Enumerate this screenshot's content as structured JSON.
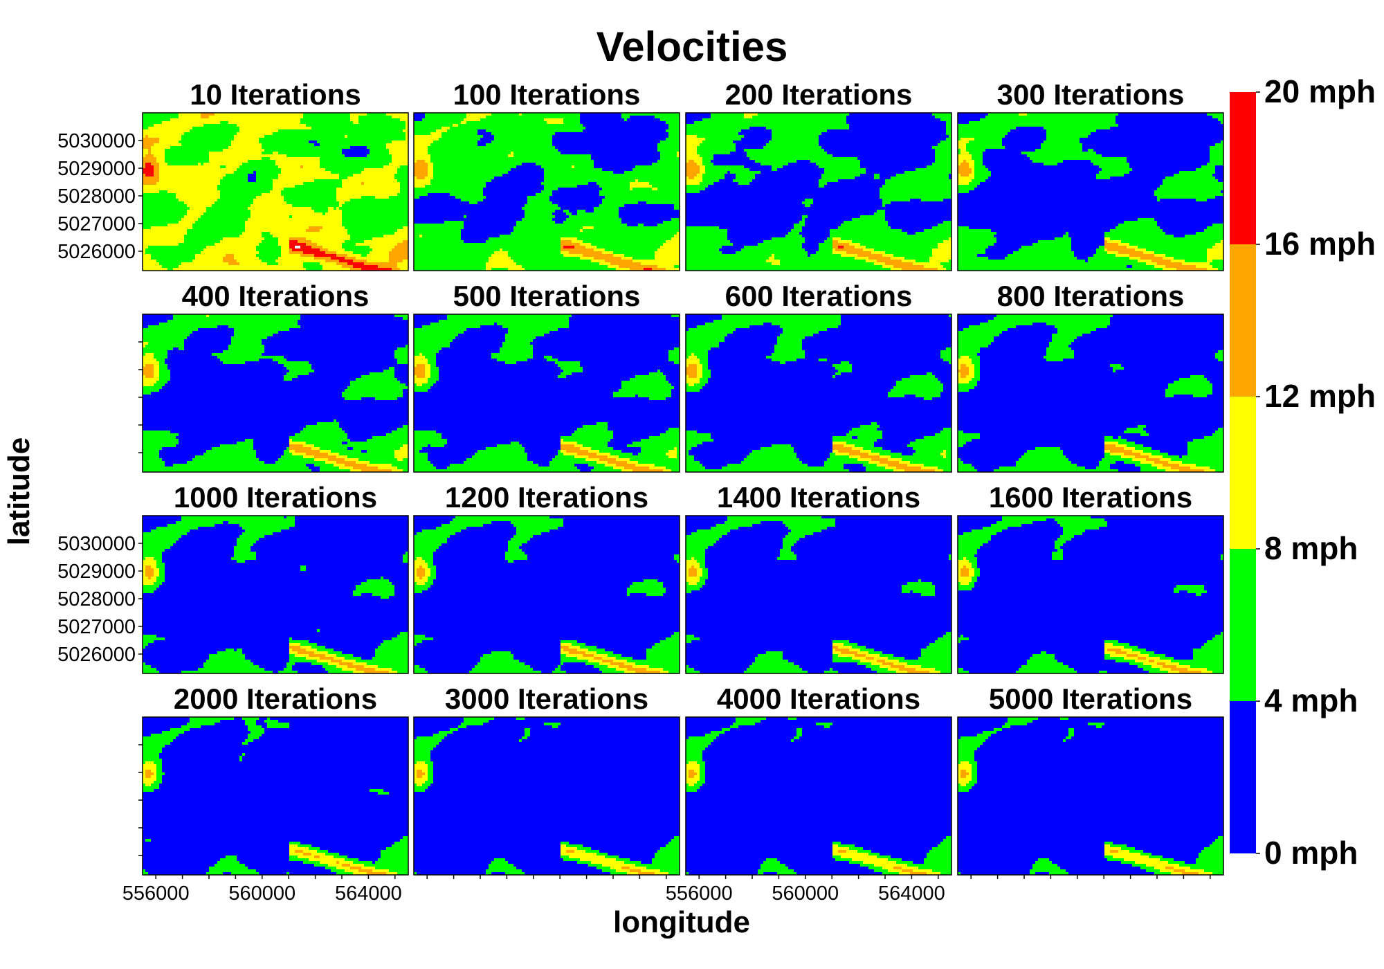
{
  "chart_data": {
    "type": "heatmap",
    "title": "Velocities",
    "xlabel": "longitude",
    "ylabel": "latitude",
    "grid": false,
    "layout": {
      "rows": 4,
      "cols": 4
    },
    "panels": [
      {
        "title": "10 Iterations",
        "iterations": 10
      },
      {
        "title": "100 Iterations",
        "iterations": 100
      },
      {
        "title": "200 Iterations",
        "iterations": 200
      },
      {
        "title": "300 Iterations",
        "iterations": 300
      },
      {
        "title": "400 Iterations",
        "iterations": 400
      },
      {
        "title": "500 Iterations",
        "iterations": 500
      },
      {
        "title": "600 Iterations",
        "iterations": 600
      },
      {
        "title": "800 Iterations",
        "iterations": 800
      },
      {
        "title": "1000 Iterations",
        "iterations": 1000
      },
      {
        "title": "1200 Iterations",
        "iterations": 1200
      },
      {
        "title": "1400 Iterations",
        "iterations": 1400
      },
      {
        "title": "1600 Iterations",
        "iterations": 1600
      },
      {
        "title": "2000 Iterations",
        "iterations": 2000
      },
      {
        "title": "3000 Iterations",
        "iterations": 3000
      },
      {
        "title": "4000 Iterations",
        "iterations": 4000
      },
      {
        "title": "5000 Iterations",
        "iterations": 5000
      }
    ],
    "x_range": [
      555500,
      565500
    ],
    "y_range": [
      5025300,
      5031000
    ],
    "x_ticks": [
      556000,
      560000,
      564000
    ],
    "x_tick_labels": [
      "556000",
      "560000",
      "564000"
    ],
    "y_ticks": [
      5026000,
      5027000,
      5028000,
      5029000,
      5030000
    ],
    "y_tick_labels": [
      "5026000",
      "5027000",
      "5028000",
      "5029000",
      "5030000"
    ],
    "x_labeled_columns": [
      0,
      2
    ],
    "y_labeled_rows": [
      0,
      2
    ],
    "colorbar": {
      "breaks": [
        0,
        4,
        8,
        12,
        16,
        20
      ],
      "labels": [
        "0 mph",
        "4 mph",
        "8 mph",
        "12 mph",
        "16 mph",
        "20 mph"
      ],
      "colors": [
        "#0000ff",
        "#00ff00",
        "#ffff00",
        "#ffa500",
        "#ff0000"
      ],
      "above_max_color": "#ffffff"
    }
  }
}
